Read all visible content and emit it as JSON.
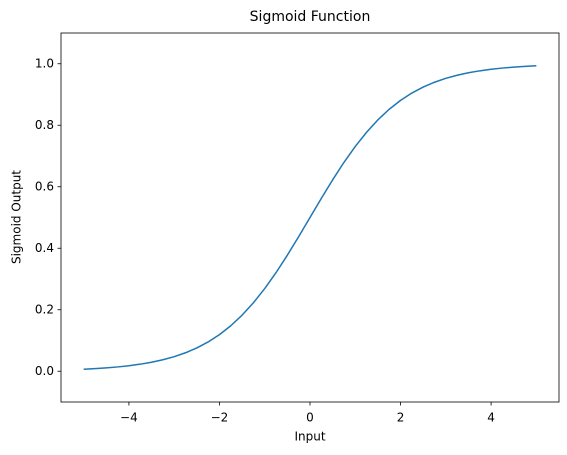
{
  "chart_data": {
    "type": "line",
    "title": "Sigmoid Function",
    "x_label": "Input",
    "y_label": "Sigmoid Output",
    "color": "#1f77b4",
    "x": [
      -5,
      -4.75,
      -4.5,
      -4.25,
      -4,
      -3.75,
      -3.5,
      -3.25,
      -3,
      -2.75,
      -2.5,
      -2.25,
      -2,
      -1.75,
      -1.5,
      -1.25,
      -1,
      -0.75,
      -0.5,
      -0.25,
      0,
      0.25,
      0.5,
      0.75,
      1,
      1.25,
      1.5,
      1.75,
      2,
      2.25,
      2.5,
      2.75,
      3,
      3.25,
      3.5,
      3.75,
      4,
      4.25,
      4.5,
      4.75,
      5
    ],
    "values": [
      0.0067,
      0.0086,
      0.011,
      0.014,
      0.018,
      0.023,
      0.0293,
      0.0374,
      0.0474,
      0.0601,
      0.0759,
      0.0953,
      0.1192,
      0.148,
      0.1824,
      0.2227,
      0.2689,
      0.3208,
      0.3775,
      0.4378,
      0.5,
      0.5622,
      0.6225,
      0.6792,
      0.7311,
      0.7773,
      0.8176,
      0.852,
      0.8808,
      0.9047,
      0.9241,
      0.9399,
      0.9526,
      0.9626,
      0.9707,
      0.977,
      0.982,
      0.986,
      0.989,
      0.9914,
      0.9933
    ],
    "xlim": [
      -5.5,
      5.5
    ],
    "xticks": [
      {
        "value": -4,
        "label": "−4"
      },
      {
        "value": -2,
        "label": "−2"
      },
      0,
      2,
      4
    ],
    "ylim": [
      -0.1,
      1.1
    ],
    "yticks": [
      {
        "value": 0,
        "label": "0.0"
      },
      0.2,
      0.4,
      0.6,
      0.8,
      {
        "value": 1,
        "label": "1.0"
      }
    ]
  }
}
